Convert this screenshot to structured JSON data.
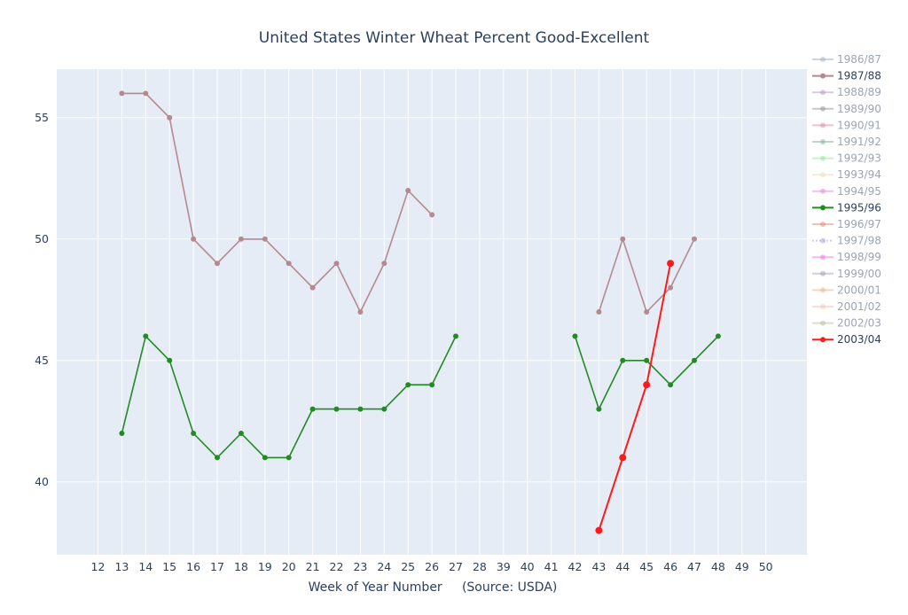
{
  "chart_data": {
    "type": "line",
    "title": "United States Winter Wheat Percent Good-Excellent",
    "xlabel": "Week of Year Number     (Source: USDA)",
    "ylabel": "",
    "ylim": [
      37,
      57
    ],
    "y_ticks": [
      40,
      45,
      50,
      55
    ],
    "categories": [
      "12",
      "13",
      "14",
      "15",
      "16",
      "17",
      "18",
      "19",
      "20",
      "21",
      "22",
      "27",
      "28",
      "39",
      "40",
      "41",
      "42",
      "43",
      "44",
      "45",
      "46",
      "47",
      "48",
      "49",
      "50"
    ],
    "grid": true,
    "legend_placement": "right",
    "series": [
      {
        "name": "1986/87",
        "color": "#aab4ce",
        "visible": false,
        "points": []
      },
      {
        "name": "1987/88",
        "color": "#b48a90",
        "visible": true,
        "marker_size": 3,
        "points": [
          [
            "13",
            56
          ],
          [
            "14",
            56
          ],
          [
            "15",
            55
          ],
          [
            "16",
            50
          ],
          [
            "17",
            49
          ],
          [
            "18",
            50
          ],
          [
            "19",
            50
          ],
          [
            "20",
            49
          ],
          [
            "21",
            48
          ],
          [
            "22",
            49
          ],
          [
            "23",
            47
          ],
          [
            "24",
            49
          ],
          [
            "25",
            52
          ],
          [
            "26",
            51
          ],
          null,
          [
            "43",
            47
          ],
          [
            "44",
            50
          ],
          [
            "45",
            47
          ],
          [
            "46",
            48
          ],
          [
            "47",
            50
          ]
        ]
      },
      {
        "name": "1988/89",
        "color": "#b9a0c9",
        "visible": false,
        "points": []
      },
      {
        "name": "1989/90",
        "color": "#9a9a9a",
        "visible": false,
        "points": []
      },
      {
        "name": "1990/91",
        "color": "#e58fb0",
        "visible": false,
        "points": []
      },
      {
        "name": "1991/92",
        "color": "#8cb89a",
        "visible": false,
        "points": []
      },
      {
        "name": "1992/93",
        "color": "#98e898",
        "visible": false,
        "points": []
      },
      {
        "name": "1993/94",
        "color": "#f2dcc0",
        "visible": false,
        "points": []
      },
      {
        "name": "1994/95",
        "color": "#e98be9",
        "visible": false,
        "points": []
      },
      {
        "name": "1995/96",
        "color": "#228b22",
        "visible": true,
        "marker_size": 3,
        "points": [
          [
            "13",
            42
          ],
          [
            "14",
            46
          ],
          [
            "15",
            45
          ],
          [
            "16",
            42
          ],
          [
            "17",
            41
          ],
          [
            "18",
            42
          ],
          [
            "19",
            41
          ],
          [
            "20",
            41
          ],
          [
            "21",
            43
          ],
          [
            "22",
            43
          ],
          [
            "23",
            43
          ],
          [
            "24",
            43
          ],
          [
            "25",
            44
          ],
          [
            "26",
            44
          ],
          [
            "27",
            46
          ],
          null,
          [
            "42",
            46
          ],
          [
            "43",
            43
          ],
          [
            "44",
            45
          ],
          [
            "45",
            45
          ],
          [
            "46",
            44
          ],
          [
            "47",
            45
          ],
          [
            "48",
            46
          ]
        ]
      },
      {
        "name": "1996/97",
        "color": "#e8907e",
        "visible": false,
        "points": []
      },
      {
        "name": "1997/98",
        "color": "#b0a0e6",
        "visible": false,
        "dash": "dot",
        "points": []
      },
      {
        "name": "1998/99",
        "color": "#ea80ea",
        "visible": false,
        "points": []
      },
      {
        "name": "1999/00",
        "color": "#a6a6c4",
        "visible": false,
        "points": []
      },
      {
        "name": "2000/01",
        "color": "#f2b38a",
        "visible": false,
        "points": []
      },
      {
        "name": "2001/02",
        "color": "#f5c8b0",
        "visible": false,
        "points": []
      },
      {
        "name": "2002/03",
        "color": "#b7c79a",
        "visible": false,
        "points": []
      },
      {
        "name": "2003/04",
        "color": "#ff1a1a",
        "visible": true,
        "marker_size": 4,
        "points": [
          [
            "43",
            38
          ],
          [
            "44",
            41
          ],
          [
            "45",
            44
          ],
          [
            "46",
            49
          ]
        ]
      }
    ]
  }
}
